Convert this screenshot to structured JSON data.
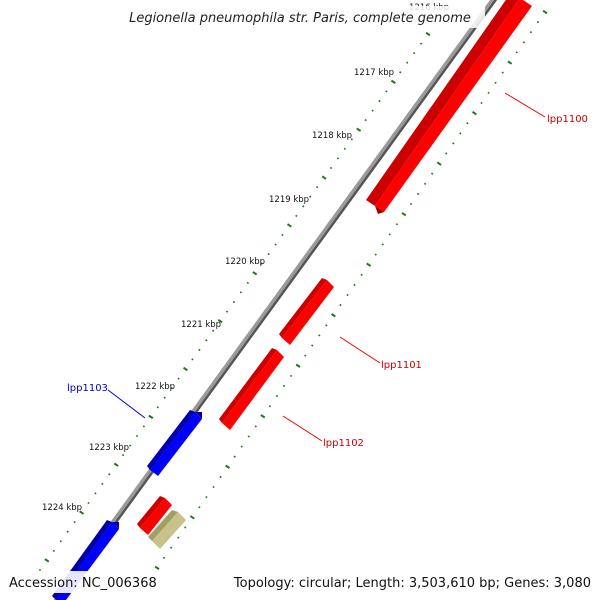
{
  "title": "Legionella pneumophila str. Paris, complete genome",
  "footer": {
    "accession": "Accession: NC_006368",
    "summary": "Topology: circular; Length: 3,503,610 bp; Genes: 3,080"
  },
  "ruler": {
    "labels": [
      "1216 kbp",
      "1217 kbp",
      "1218 kbp",
      "1219 kbp",
      "1220 kbp",
      "1221 kbp",
      "1222 kbp",
      "1223 kbp",
      "1224 kbp"
    ],
    "tick_color": "#1a7a1a"
  },
  "backbone_color": "#808080",
  "genes": [
    {
      "name": "lpp1100",
      "strand": "forward",
      "color": "#ff0000",
      "label_color": "#cc0000"
    },
    {
      "name": "lpp1101",
      "strand": "forward",
      "color": "#ff0000",
      "label_color": "#cc0000"
    },
    {
      "name": "lpp1102",
      "strand": "forward",
      "color": "#ff0000",
      "label_color": "#cc0000"
    },
    {
      "name": "lpp1103",
      "strand": "reverse",
      "color": "#0000ff",
      "label_color": "#0000cc"
    },
    {
      "name": "",
      "strand": "forward",
      "color": "#ff0000",
      "label_color": ""
    },
    {
      "name": "",
      "strand": "forward",
      "color": "#c8c28a",
      "label_color": ""
    },
    {
      "name": "",
      "strand": "reverse",
      "color": "#0000ff",
      "label_color": ""
    }
  ]
}
